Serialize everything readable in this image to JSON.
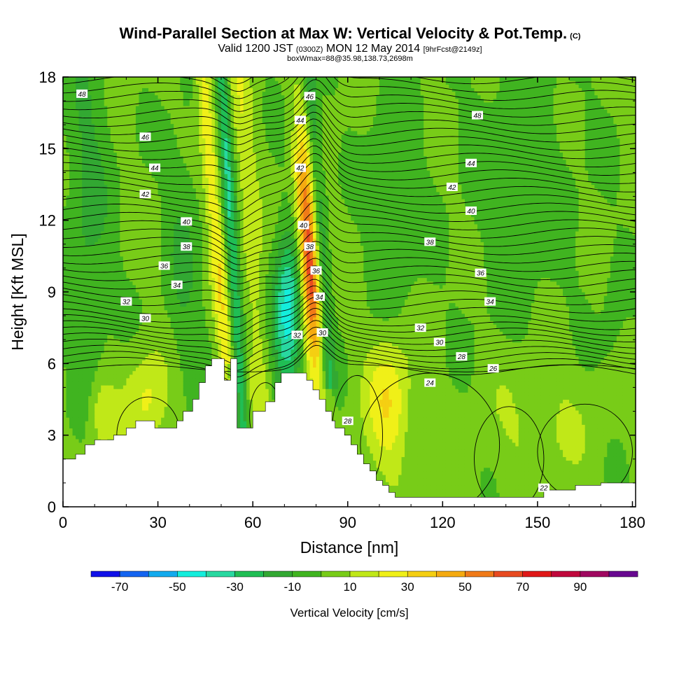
{
  "title": {
    "main": "Wind-Parallel Section at Max W: Vertical Velocity & Pot.Temp.",
    "copyright": "(C)",
    "valid_prefix": "Valid 1200 JST",
    "valid_z": "(0300Z)",
    "valid_suffix": "MON 12 May 2014",
    "forecast": "[9hrFcst@2149z]",
    "box": "boxWmax=88@35.98,138.73,2698m"
  },
  "colors": {
    "palette": [
      "#1010e8",
      "#1464f0",
      "#12aaee",
      "#14eedc",
      "#28d8a0",
      "#20be54",
      "#32a832",
      "#40b420",
      "#78cc18",
      "#c0e818",
      "#f0f018",
      "#f5cf12",
      "#f5aa10",
      "#f07a18",
      "#e84a20",
      "#e01818",
      "#c0083c",
      "#a00860",
      "#680890"
    ],
    "legend_colors": [
      "#1010e8",
      "#1464f0",
      "#12aaee",
      "#14eedc",
      "#28d8a0",
      "#20be54",
      "#32a832",
      "#40b420",
      "#78cc18",
      "#c0e818",
      "#f0f018",
      "#f5cf12",
      "#f5aa10",
      "#f07a18",
      "#e84a20",
      "#e01818",
      "#c0083c",
      "#a00860",
      "#680890"
    ],
    "terrain": "#ffffff",
    "contour": "#000000"
  },
  "chart_data": {
    "type": "heatmap",
    "xlabel": "Distance [nm]",
    "ylabel": "Height [Kft MSL]",
    "xlim": [
      0,
      181
    ],
    "ylim": [
      0,
      18
    ],
    "x_ticks": [
      0,
      30,
      60,
      90,
      120,
      150,
      180
    ],
    "x_tick_labels": [
      "0",
      "30",
      "60",
      "90",
      "120",
      "150",
      "180"
    ],
    "y_ticks": [
      0,
      3,
      6,
      9,
      12,
      15,
      18
    ],
    "y_tick_labels": [
      "0",
      "3",
      "6",
      "9",
      "12",
      "15",
      "18"
    ],
    "colorbar": {
      "label": "Vertical Velocity [cm/s]",
      "ticks": [
        -70,
        -50,
        -30,
        -10,
        10,
        30,
        50,
        70,
        90
      ],
      "tick_labels": [
        "-70",
        "-50",
        "-30",
        "-10",
        "10",
        "30",
        "50",
        "70",
        "90"
      ],
      "bounds": [
        -80,
        100
      ],
      "interval": 10
    },
    "terrain": [
      [
        0,
        2
      ],
      [
        4,
        2
      ],
      [
        4,
        2.2
      ],
      [
        7,
        2.2
      ],
      [
        7,
        2.6
      ],
      [
        10,
        2.6
      ],
      [
        10,
        2.8
      ],
      [
        16,
        2.8
      ],
      [
        16,
        3
      ],
      [
        20,
        3
      ],
      [
        20,
        3.3
      ],
      [
        23,
        3.3
      ],
      [
        23,
        3.6
      ],
      [
        29,
        3.6
      ],
      [
        29,
        3.3
      ],
      [
        36,
        3.3
      ],
      [
        36,
        3.6
      ],
      [
        38,
        3.6
      ],
      [
        38,
        4
      ],
      [
        41,
        4
      ],
      [
        41,
        4.5
      ],
      [
        43,
        4.5
      ],
      [
        43,
        5.2
      ],
      [
        45,
        5.2
      ],
      [
        45,
        5.9
      ],
      [
        47,
        5.9
      ],
      [
        47,
        6.2
      ],
      [
        51,
        6.2
      ],
      [
        51,
        5.3
      ],
      [
        53,
        5.3
      ],
      [
        53,
        6.2
      ],
      [
        55,
        6.2
      ],
      [
        55,
        3.3
      ],
      [
        60,
        3.3
      ],
      [
        60,
        4
      ],
      [
        64,
        4
      ],
      [
        64,
        4.4
      ],
      [
        67,
        4.4
      ],
      [
        67,
        5.2
      ],
      [
        69,
        5.2
      ],
      [
        69,
        5.6
      ],
      [
        77,
        5.6
      ],
      [
        77,
        5.3
      ],
      [
        79,
        5.3
      ],
      [
        79,
        4.9
      ],
      [
        81,
        4.9
      ],
      [
        81,
        4.5
      ],
      [
        83,
        4.5
      ],
      [
        83,
        4
      ],
      [
        85,
        4
      ],
      [
        85,
        3.6
      ],
      [
        86,
        3.6
      ],
      [
        86,
        3.3
      ],
      [
        89,
        3.3
      ],
      [
        89,
        3
      ],
      [
        91,
        3
      ],
      [
        91,
        2.6
      ],
      [
        93,
        2.6
      ],
      [
        93,
        2.2
      ],
      [
        95,
        2.2
      ],
      [
        95,
        1.8
      ],
      [
        97,
        1.8
      ],
      [
        97,
        1.5
      ],
      [
        99,
        1.5
      ],
      [
        99,
        1.1
      ],
      [
        101,
        1.1
      ],
      [
        101,
        0.9
      ],
      [
        103,
        0.9
      ],
      [
        103,
        0.6
      ],
      [
        105,
        0.6
      ],
      [
        105,
        0.4
      ],
      [
        152,
        0.4
      ],
      [
        152,
        0.7
      ],
      [
        162,
        0.7
      ],
      [
        162,
        0.9
      ],
      [
        170,
        0.9
      ],
      [
        170,
        1
      ],
      [
        181,
        1
      ]
    ],
    "theta_labels": [
      {
        "text": "48",
        "x": 6,
        "y": 17.3
      },
      {
        "text": "46",
        "x": 26,
        "y": 15.5
      },
      {
        "text": "44",
        "x": 29,
        "y": 14.2
      },
      {
        "text": "42",
        "x": 26,
        "y": 13.1
      },
      {
        "text": "40",
        "x": 39,
        "y": 11.95
      },
      {
        "text": "38",
        "x": 39,
        "y": 10.9
      },
      {
        "text": "36",
        "x": 32,
        "y": 10.1
      },
      {
        "text": "34",
        "x": 36,
        "y": 9.3
      },
      {
        "text": "32",
        "x": 20,
        "y": 8.6
      },
      {
        "text": "30",
        "x": 26,
        "y": 7.9
      },
      {
        "text": "46",
        "x": 78,
        "y": 17.2
      },
      {
        "text": "44",
        "x": 75,
        "y": 16.2
      },
      {
        "text": "42",
        "x": 75,
        "y": 14.2
      },
      {
        "text": "40",
        "x": 76,
        "y": 11.8
      },
      {
        "text": "38",
        "x": 78,
        "y": 10.9
      },
      {
        "text": "36",
        "x": 80,
        "y": 9.9
      },
      {
        "text": "34",
        "x": 81,
        "y": 8.8
      },
      {
        "text": "32",
        "x": 74,
        "y": 7.2
      },
      {
        "text": "30",
        "x": 82,
        "y": 7.3
      },
      {
        "text": "28",
        "x": 90,
        "y": 3.6
      },
      {
        "text": "48",
        "x": 131,
        "y": 16.4
      },
      {
        "text": "44",
        "x": 129,
        "y": 14.4
      },
      {
        "text": "42",
        "x": 123,
        "y": 13.4
      },
      {
        "text": "40",
        "x": 129,
        "y": 12.4
      },
      {
        "text": "38",
        "x": 116,
        "y": 11.1
      },
      {
        "text": "36",
        "x": 132,
        "y": 9.8
      },
      {
        "text": "34",
        "x": 135,
        "y": 8.6
      },
      {
        "text": "32",
        "x": 113,
        "y": 7.5
      },
      {
        "text": "30",
        "x": 119,
        "y": 6.9
      },
      {
        "text": "28",
        "x": 126,
        "y": 6.3
      },
      {
        "text": "26",
        "x": 136,
        "y": 5.8
      },
      {
        "text": "24",
        "x": 116,
        "y": 5.2
      },
      {
        "text": "22",
        "x": 152,
        "y": 0.8
      }
    ]
  }
}
